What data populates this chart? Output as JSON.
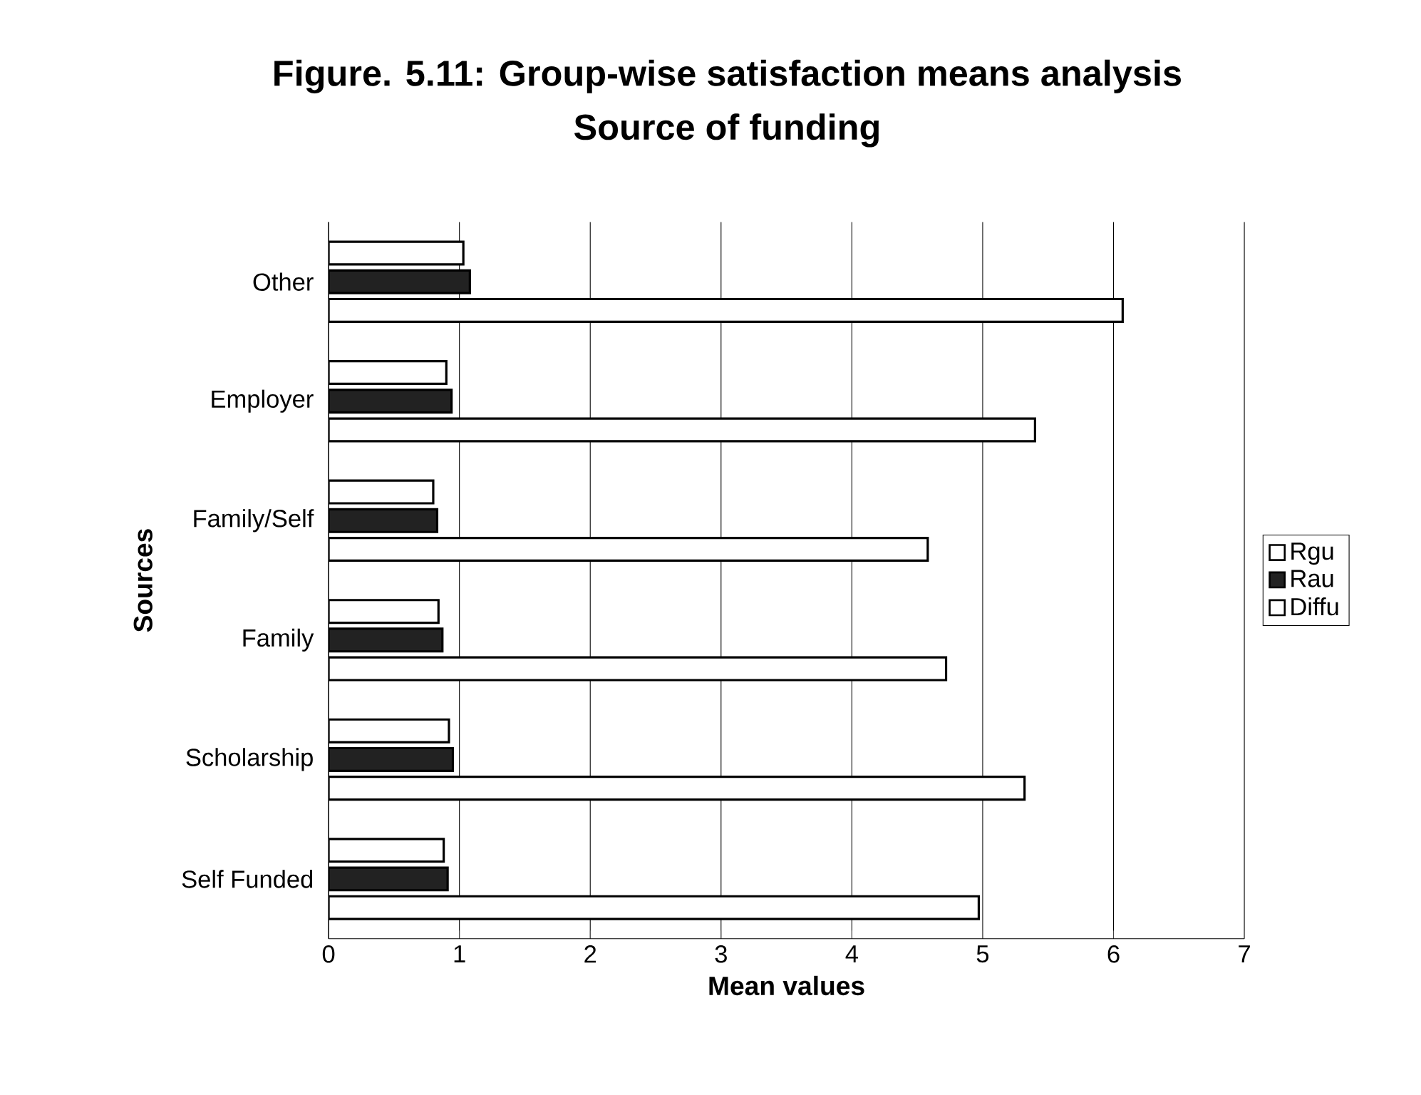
{
  "chart_data": {
    "type": "bar",
    "orientation": "horizontal",
    "title": "Figure. 5.11: Group-wise satisfaction means analysis",
    "subtitle": "Source of funding",
    "xlabel": "Mean values",
    "ylabel": "Sources",
    "categories": [
      "Other",
      "Employer",
      "Family/Self",
      "Family",
      "Scholarship",
      "Self Funded"
    ],
    "series": [
      {
        "name": "Rgu",
        "color": "#ffffff",
        "values": [
          1.03,
          0.9,
          0.8,
          0.84,
          0.92,
          0.88
        ]
      },
      {
        "name": "Rau",
        "color": "#222222",
        "values": [
          1.08,
          0.94,
          0.83,
          0.87,
          0.95,
          0.91
        ]
      },
      {
        "name": "Diffu",
        "color": "#ffffff",
        "values": [
          6.07,
          5.4,
          4.58,
          4.72,
          5.32,
          4.97
        ]
      }
    ],
    "xlim": [
      0,
      7
    ],
    "xticks": [
      0,
      1,
      2,
      3,
      4,
      5,
      6,
      7
    ],
    "grid": "x",
    "legend": "right"
  }
}
